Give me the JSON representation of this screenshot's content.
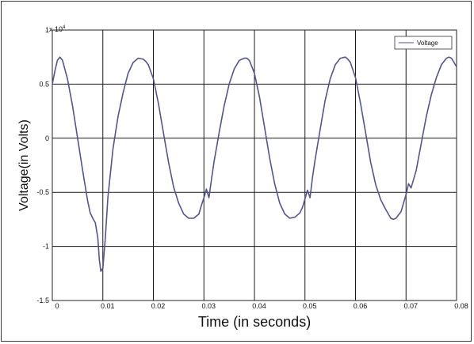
{
  "chart_data": {
    "type": "line",
    "xlabel": "Time (in seconds)",
    "ylabel": "Voltage(in  Volts)",
    "y_exponent_label": "x 10",
    "y_exponent_power": "4",
    "xlim": [
      0,
      0.08
    ],
    "ylim": [
      -1.5,
      1
    ],
    "x_ticks": [
      0,
      0.01,
      0.02,
      0.03,
      0.04,
      0.05,
      0.06,
      0.07,
      0.08
    ],
    "x_tick_labels": [
      "0",
      "0.01",
      "0.02",
      "0.03",
      "0.04",
      "0.05",
      "0.06",
      "0.07",
      "0.08"
    ],
    "y_ticks": [
      1,
      0.5,
      0,
      -0.5,
      -1,
      -1.5
    ],
    "y_tick_labels": [
      "1",
      "0.5",
      "0",
      "-0.5",
      "-1",
      "-1.5"
    ],
    "grid": true,
    "legend_position": "top-right",
    "line_color": "#55558a",
    "series": [
      {
        "name": "Voltage",
        "x": [
          0,
          0.0005,
          0.001,
          0.0015,
          0.002,
          0.003,
          0.004,
          0.005,
          0.006,
          0.007,
          0.0075,
          0.008,
          0.0085,
          0.009,
          0.0093,
          0.0096,
          0.01,
          0.0105,
          0.011,
          0.012,
          0.013,
          0.014,
          0.015,
          0.016,
          0.017,
          0.018,
          0.0185,
          0.019,
          0.02,
          0.021,
          0.022,
          0.023,
          0.024,
          0.025,
          0.026,
          0.027,
          0.028,
          0.029,
          0.0295,
          0.03,
          0.0305,
          0.031,
          0.0315,
          0.032,
          0.033,
          0.034,
          0.035,
          0.036,
          0.037,
          0.038,
          0.0385,
          0.039,
          0.04,
          0.041,
          0.042,
          0.043,
          0.044,
          0.045,
          0.046,
          0.047,
          0.048,
          0.049,
          0.0495,
          0.05,
          0.0505,
          0.051,
          0.0515,
          0.052,
          0.053,
          0.054,
          0.055,
          0.056,
          0.057,
          0.058,
          0.0585,
          0.059,
          0.06,
          0.061,
          0.062,
          0.063,
          0.064,
          0.065,
          0.066,
          0.067,
          0.0675,
          0.068,
          0.069,
          0.0695,
          0.07,
          0.0705,
          0.071,
          0.072,
          0.073,
          0.074,
          0.075,
          0.076,
          0.077,
          0.078,
          0.0785,
          0.079,
          0.0795,
          0.08
        ],
        "values": [
          0.5,
          0.62,
          0.72,
          0.75,
          0.72,
          0.55,
          0.3,
          0.0,
          -0.3,
          -0.58,
          -0.69,
          -0.74,
          -0.78,
          -0.92,
          -1.12,
          -1.23,
          -1.2,
          -0.92,
          -0.55,
          -0.1,
          0.2,
          0.42,
          0.6,
          0.7,
          0.74,
          0.73,
          0.71,
          0.68,
          0.55,
          0.32,
          0.05,
          -0.22,
          -0.45,
          -0.6,
          -0.7,
          -0.74,
          -0.74,
          -0.7,
          -0.62,
          -0.55,
          -0.47,
          -0.55,
          -0.38,
          -0.22,
          0.05,
          0.3,
          0.5,
          0.64,
          0.72,
          0.74,
          0.74,
          0.72,
          0.6,
          0.38,
          0.1,
          -0.18,
          -0.42,
          -0.6,
          -0.7,
          -0.74,
          -0.73,
          -0.69,
          -0.64,
          -0.56,
          -0.48,
          -0.55,
          -0.36,
          -0.2,
          0.08,
          0.35,
          0.55,
          0.68,
          0.74,
          0.75,
          0.73,
          0.7,
          0.56,
          0.32,
          0.05,
          -0.22,
          -0.43,
          -0.57,
          -0.66,
          -0.74,
          -0.75,
          -0.74,
          -0.68,
          -0.6,
          -0.52,
          -0.42,
          -0.46,
          -0.3,
          -0.05,
          0.2,
          0.4,
          0.56,
          0.68,
          0.74,
          0.75,
          0.74,
          0.7,
          0.66
        ]
      }
    ]
  }
}
